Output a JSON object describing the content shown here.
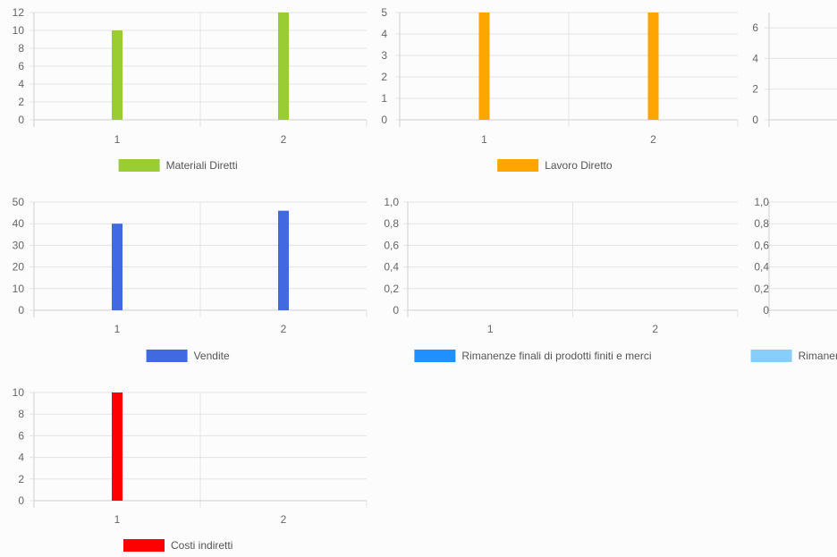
{
  "chart_data": [
    {
      "type": "bar",
      "categories": [
        "1",
        "2"
      ],
      "series": [
        {
          "name": "Materiali Diretti",
          "values": [
            10,
            12
          ],
          "color": "#9acd32"
        }
      ],
      "ylim": [
        0,
        12
      ],
      "yticks": [
        "0",
        "2",
        "4",
        "6",
        "8",
        "10",
        "12"
      ],
      "grid": true,
      "legend": "bottom"
    },
    {
      "type": "bar",
      "categories": [
        "1",
        "2"
      ],
      "series": [
        {
          "name": "Lavoro Diretto",
          "values": [
            5,
            5
          ],
          "color": "#ffa500"
        }
      ],
      "ylim": [
        0,
        5
      ],
      "yticks": [
        "0",
        "1",
        "2",
        "3",
        "4",
        "5"
      ],
      "grid": true,
      "legend": "bottom"
    },
    {
      "type": "bar",
      "categories": [],
      "series": [],
      "ylim": [
        0,
        7
      ],
      "yticks": [
        "0",
        "2",
        "4",
        "6"
      ],
      "grid": true,
      "legend": "bottom"
    },
    {
      "type": "bar",
      "categories": [
        "1",
        "2"
      ],
      "series": [
        {
          "name": "Vendite",
          "values": [
            40,
            46
          ],
          "color": "#4169e1"
        }
      ],
      "ylim": [
        0,
        50
      ],
      "yticks": [
        "0",
        "10",
        "20",
        "30",
        "40",
        "50"
      ],
      "grid": true,
      "legend": "bottom"
    },
    {
      "type": "bar",
      "categories": [
        "1",
        "2"
      ],
      "series": [
        {
          "name": "Rimanenze finali di prodotti finiti e merci",
          "values": [
            0,
            0
          ],
          "color": "#1e90ff"
        }
      ],
      "ylim": [
        0,
        1
      ],
      "yticks": [
        "0",
        "0,2",
        "0,4",
        "0,6",
        "0,8",
        "1,0"
      ],
      "grid": true,
      "legend": "bottom"
    },
    {
      "type": "bar",
      "categories": [],
      "series": [
        {
          "name": "Rimaner",
          "values": [],
          "color": "#87cefa"
        }
      ],
      "ylim": [
        0,
        1
      ],
      "yticks": [
        "0",
        "0,2",
        "0,4",
        "0,6",
        "0,8",
        "1,0"
      ],
      "grid": true,
      "legend": "bottom"
    },
    {
      "type": "bar",
      "categories": [
        "1",
        "2"
      ],
      "series": [
        {
          "name": "Costi indiretti",
          "values": [
            10,
            0
          ],
          "color": "#ff0000"
        }
      ],
      "ylim": [
        0,
        10
      ],
      "yticks": [
        "0",
        "2",
        "4",
        "6",
        "8",
        "10"
      ],
      "grid": true,
      "legend": "bottom"
    }
  ]
}
